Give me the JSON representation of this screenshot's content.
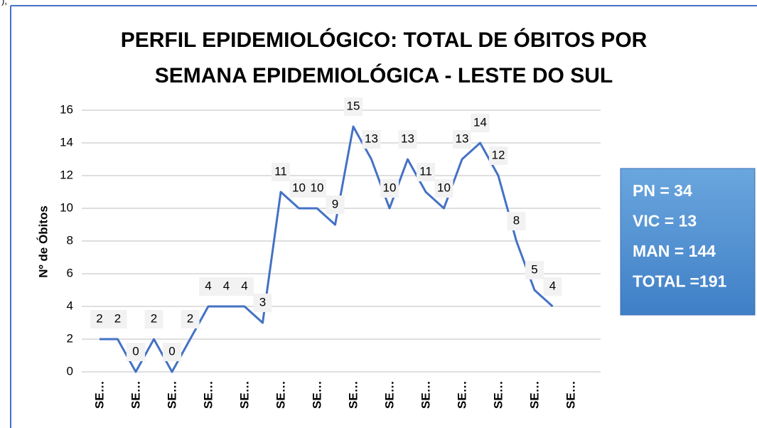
{
  "corner_text": "),",
  "chart_data": {
    "type": "line",
    "title": [
      "PERFIL EPIDEMIOLÓGICO: TOTAL DE ÓBITOS POR",
      "SEMANA EPIDEMIOLÓGICA -   LESTE DO SUL"
    ],
    "y_label": "Nº de Óbitos",
    "categories": [
      "SE…",
      null,
      "SE…",
      null,
      "SE…",
      null,
      "SE…",
      null,
      "SE…",
      null,
      "SE…",
      null,
      "SE…",
      null,
      "SE…",
      null,
      "SE…",
      null,
      "SE…",
      null,
      "SE…",
      null,
      "SE…",
      null,
      "SE…",
      null,
      "SE…"
    ],
    "values": [
      2,
      2,
      0,
      2,
      0,
      2,
      4,
      4,
      4,
      3,
      11,
      10,
      10,
      9,
      15,
      13,
      10,
      13,
      11,
      10,
      13,
      14,
      12,
      8,
      5,
      4,
      null
    ],
    "color": "#4472c4",
    "ylim": [
      0,
      16
    ],
    "yticks": [
      0,
      2,
      4,
      6,
      8,
      10,
      12,
      14,
      16
    ],
    "grid": true,
    "annotations": [
      "PN = 34",
      "VIC = 13",
      "MAN = 144",
      "TOTAL =191"
    ]
  }
}
